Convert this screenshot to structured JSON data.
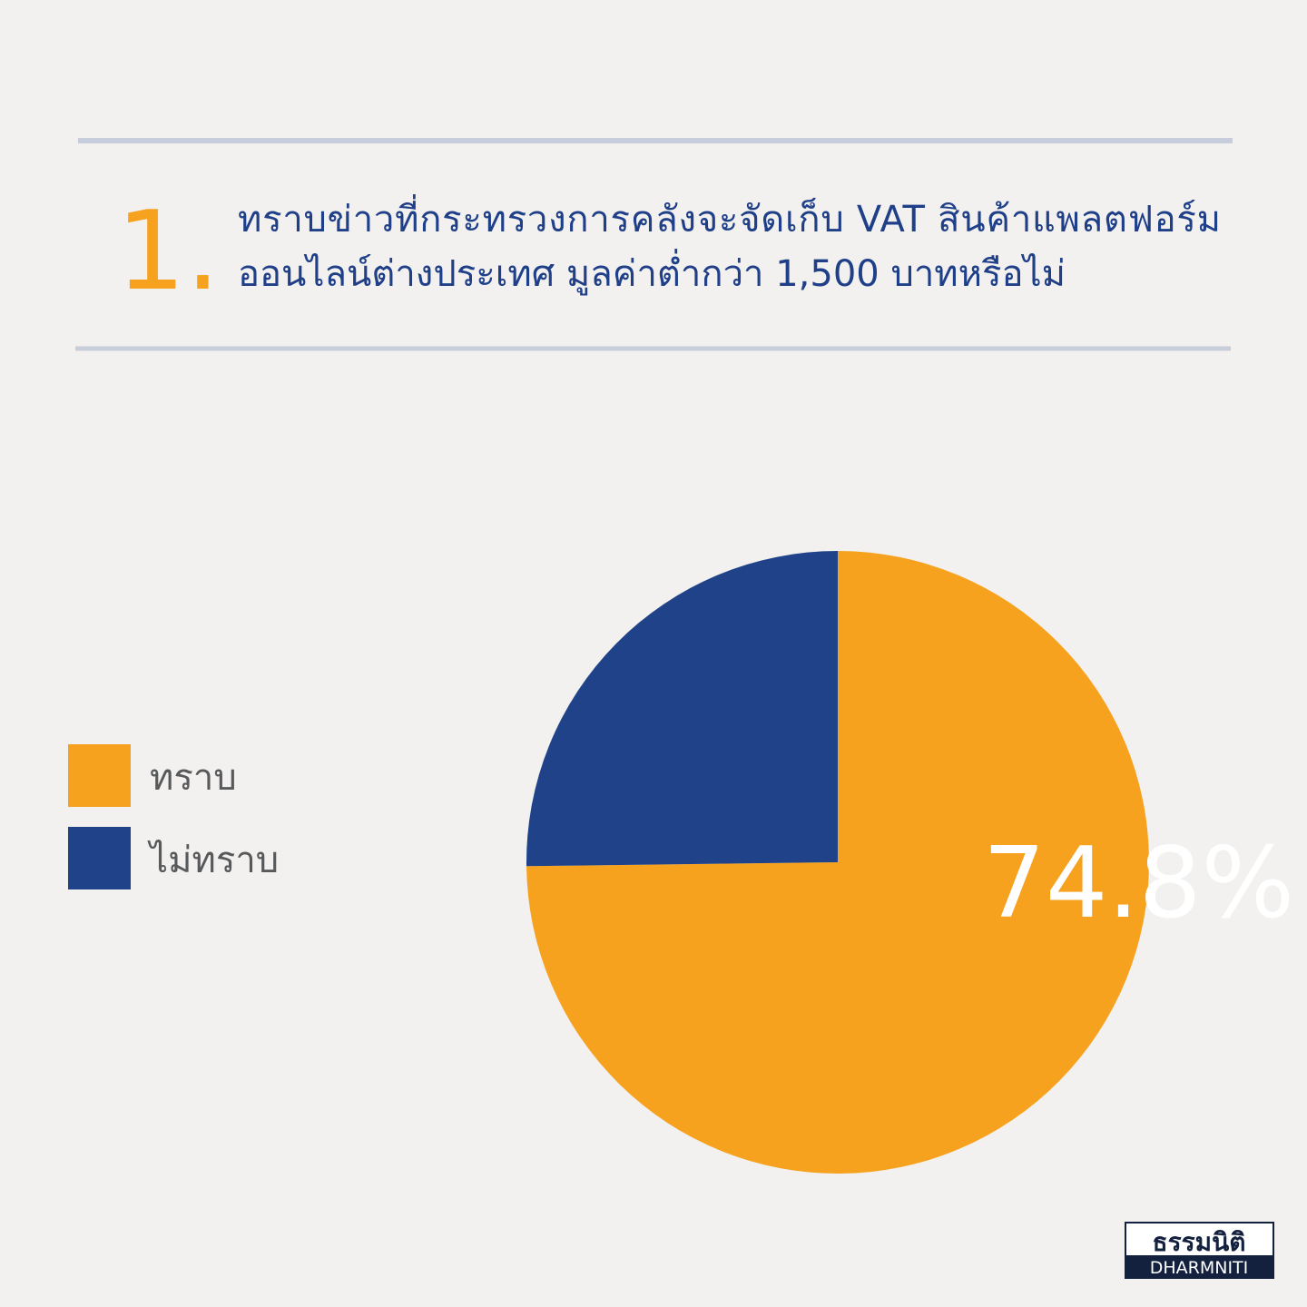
{
  "chart_data": {
    "type": "pie",
    "number": "1.",
    "title": [
      "ทราบข่าวที่กระทรวงการคลังจะจัดเก็บ VAT สินค้าแพลตฟอร์ม",
      "ออนไลน์ต่างประเทศ มูลค่าต่ำกว่า 1,500 บาทหรือไม่"
    ],
    "categories": [
      "ทราบ",
      "ไม่ทราบ"
    ],
    "values": [
      74.8,
      25.2
    ],
    "value_labels": [
      "74.8%",
      null
    ],
    "colors": [
      "#f7a21e",
      "#1f4288"
    ],
    "legend": "left"
  },
  "logo": {
    "thai": "ธรรมนิติ",
    "english": "DHARMNITI"
  }
}
